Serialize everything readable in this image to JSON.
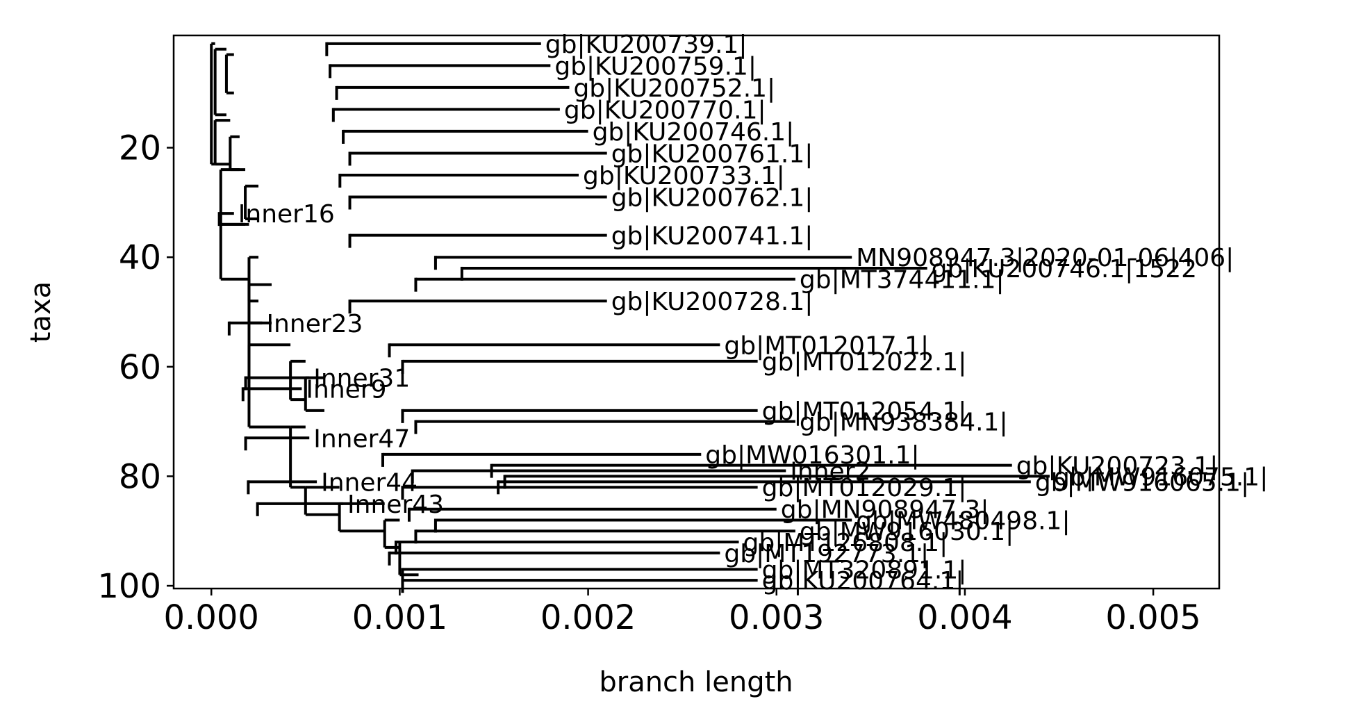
{
  "colors": {
    "branch": "#000000",
    "axes": "#000000",
    "background": "#ffffff"
  },
  "chart_data": {
    "type": "tree",
    "title": "",
    "xlabel": "branch length",
    "ylabel": "taxa",
    "xlim": [
      -0.0002,
      0.00535
    ],
    "ylim": [
      100.5,
      -0.5
    ],
    "xticks": [
      0.0,
      0.001,
      0.002,
      0.003,
      0.004,
      0.005
    ],
    "xtick_labels": [
      "0.000",
      "0.001",
      "0.002",
      "0.003",
      "0.004",
      "0.005"
    ],
    "yticks": [
      20,
      40,
      60,
      80,
      100
    ],
    "ytick_labels": [
      "20",
      "40",
      "60",
      "80",
      "100"
    ],
    "grid": false,
    "legend": "none",
    "clades": [
      {
        "x0": 0.0,
        "x1": 2e-05,
        "y0": 1,
        "y1": 23
      },
      {
        "x0": 2e-05,
        "x1": 8e-05,
        "y0": 2,
        "y1": 14
      },
      {
        "x0": 8e-05,
        "x1": 0.00012,
        "y0": 3,
        "y1": 10
      },
      {
        "x0": 2e-05,
        "x1": 0.0001,
        "y0": 15,
        "y1": 23
      },
      {
        "x0": 0.0001,
        "x1": 0.00015,
        "y0": 18,
        "y1": 24
      },
      {
        "x0": 5e-05,
        "x1": 0.00018,
        "y0": 24,
        "y1": 34
      },
      {
        "x0": 0.00018,
        "x1": 0.00025,
        "y0": 27,
        "y1": 33
      },
      {
        "x0": 5e-05,
        "x1": 0.0002,
        "y0": 34,
        "y1": 44
      },
      {
        "x0": 0.0002,
        "x1": 0.00025,
        "y0": 40,
        "y1": 48
      },
      {
        "x0": 0.0002,
        "x1": 0.00032,
        "y0": 45,
        "y1": 52
      },
      {
        "x0": 0.0002,
        "x1": 0.0002,
        "y0": 44,
        "y1": 63
      },
      {
        "x0": 0.0002,
        "x1": 0.00042,
        "y0": 56,
        "y1": 71
      },
      {
        "x0": 0.00042,
        "x1": 0.0005,
        "y0": 59,
        "y1": 66
      },
      {
        "x0": 0.0005,
        "x1": 0.0006,
        "y0": 62,
        "y1": 68
      },
      {
        "x0": 0.00042,
        "x1": 0.0005,
        "y0": 71,
        "y1": 82
      },
      {
        "x0": 0.0005,
        "x1": 0.00068,
        "y0": 82,
        "y1": 87
      },
      {
        "x0": 0.00068,
        "x1": 0.00092,
        "y0": 85,
        "y1": 90
      },
      {
        "x0": 0.00092,
        "x1": 0.001,
        "y0": 88,
        "y1": 93
      },
      {
        "x0": 0.001,
        "x1": 0.0011,
        "y0": 92,
        "y1": 98
      }
    ],
    "tips": [
      {
        "label": "gb|KU200739.1|",
        "x": 0.00175,
        "y": 1
      },
      {
        "label": "gb|KU200759.1|",
        "x": 0.0018,
        "y": 5
      },
      {
        "label": "gb|KU200752.1|",
        "x": 0.0019,
        "y": 9
      },
      {
        "label": "gb|KU200770.1|",
        "x": 0.00185,
        "y": 13
      },
      {
        "label": "gb|KU200746.1|",
        "x": 0.002,
        "y": 17
      },
      {
        "label": "gb|KU200761.1|",
        "x": 0.0021,
        "y": 21
      },
      {
        "label": "gb|KU200733.1|",
        "x": 0.00195,
        "y": 25
      },
      {
        "label": "gb|KU200762.1|",
        "x": 0.0021,
        "y": 29
      },
      {
        "label": "Inner16",
        "x": 0.00012,
        "y": 32
      },
      {
        "label": "gb|KU200741.1|",
        "x": 0.0021,
        "y": 36
      },
      {
        "label": "MN908947.3|2020-01-06|406|",
        "x": 0.0034,
        "y": 40
      },
      {
        "label": "gb|KU200746.1|1522",
        "x": 0.0038,
        "y": 42
      },
      {
        "label": "gb|MT374411.1|",
        "x": 0.0031,
        "y": 44
      },
      {
        "label": "gb|KU200728.1|",
        "x": 0.0021,
        "y": 48
      },
      {
        "label": "Inner23",
        "x": 0.00027,
        "y": 52
      },
      {
        "label": "gb|MT012017.1|",
        "x": 0.0027,
        "y": 56
      },
      {
        "label": "gb|MT012022.1|",
        "x": 0.0029,
        "y": 59
      },
      {
        "label": "Inner31",
        "x": 0.00052,
        "y": 62
      },
      {
        "label": "Inner9",
        "x": 0.00048,
        "y": 64
      },
      {
        "label": "gb|MT012054.1|",
        "x": 0.0029,
        "y": 68
      },
      {
        "label": "gb|MN938384.1|",
        "x": 0.0031,
        "y": 70
      },
      {
        "label": "Inner47",
        "x": 0.00052,
        "y": 73
      },
      {
        "label": "gb|MW016301.1|",
        "x": 0.0026,
        "y": 76
      },
      {
        "label": "gb|KU200723.1|",
        "x": 0.00425,
        "y": 78
      },
      {
        "label": "Inner2",
        "x": 0.00305,
        "y": 79
      },
      {
        "label": "gb|MW916075.1|",
        "x": 0.00445,
        "y": 80
      },
      {
        "label": "gb|MW916065.1|",
        "x": 0.00435,
        "y": 81
      },
      {
        "label": "Inner44",
        "x": 0.00056,
        "y": 81
      },
      {
        "label": "gb|MT012029.1|",
        "x": 0.0029,
        "y": 82
      },
      {
        "label": "Inner43",
        "x": 0.0007,
        "y": 85
      },
      {
        "label": "gb|MN908947.3|",
        "x": 0.003,
        "y": 86
      },
      {
        "label": "gb|MW480498.1|",
        "x": 0.0034,
        "y": 88
      },
      {
        "label": "gb|MW916030.1|",
        "x": 0.0031,
        "y": 90
      },
      {
        "label": "gb|MT126808.1|",
        "x": 0.0028,
        "y": 92
      },
      {
        "label": "gb|MT192773.1|",
        "x": 0.0027,
        "y": 94
      },
      {
        "label": "gb|MT320891.1|",
        "x": 0.0029,
        "y": 97
      },
      {
        "label": "gb|KU200764.1|",
        "x": 0.0029,
        "y": 99
      }
    ]
  }
}
